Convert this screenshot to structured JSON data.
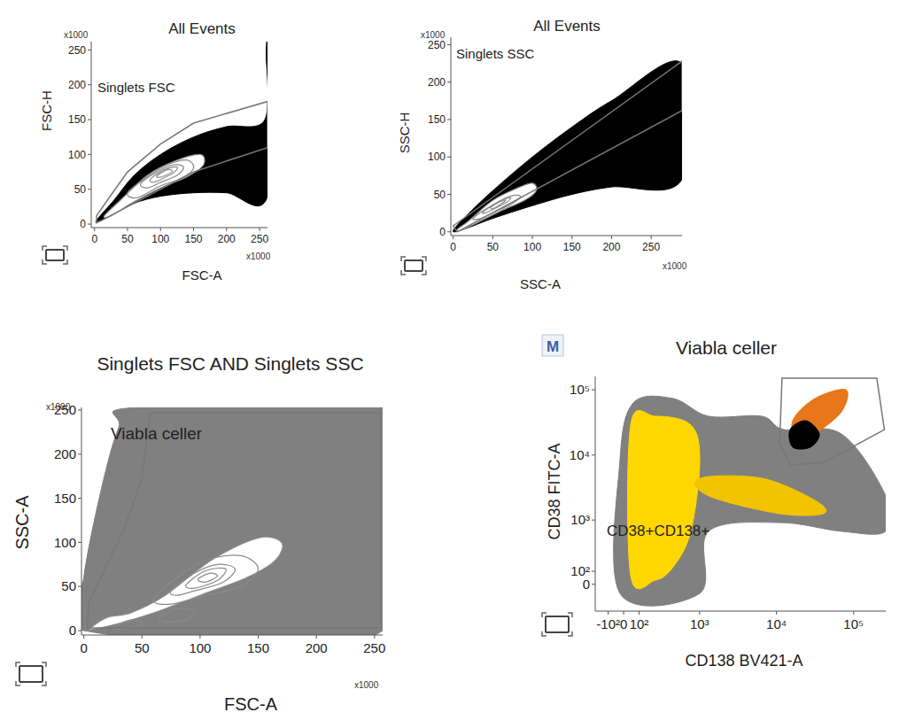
{
  "chart_data": [
    {
      "type": "density",
      "title": "All Events",
      "x_label": "FSC-A",
      "y_label": "FSC-H",
      "scale_label": "x1000",
      "xlim": [
        -5,
        262
      ],
      "ylim": [
        -5,
        262
      ],
      "xticks": [
        0,
        50,
        100,
        150,
        200,
        250
      ],
      "yticks": [
        0,
        50,
        100,
        150,
        200,
        250
      ],
      "clouds": [
        {
          "color": "#000000",
          "x": [
            5,
            30,
            60,
            100,
            150,
            200,
            258,
            260,
            262,
            262,
            200,
            150,
            100,
            60,
            30,
            5
          ],
          "y": [
            8,
            35,
            70,
            100,
            125,
            140,
            150,
            247,
            247,
            40,
            45,
            45,
            40,
            30,
            15,
            3
          ]
        }
      ],
      "contours": [
        {
          "x": [
            15,
            40,
            80,
            120,
            160,
            165,
            140,
            100,
            60,
            25
          ],
          "y": [
            12,
            35,
            70,
            90,
            100,
            85,
            68,
            52,
            32,
            12
          ]
        },
        {
          "x": [
            50,
            80,
            110,
            140,
            150,
            130,
            100,
            65
          ],
          "y": [
            45,
            68,
            85,
            92,
            80,
            65,
            55,
            38
          ]
        },
        {
          "x": [
            70,
            95,
            120,
            135,
            125,
            100,
            80
          ],
          "y": [
            58,
            75,
            85,
            82,
            70,
            60,
            52
          ]
        },
        {
          "x": [
            85,
            105,
            125,
            120,
            100,
            88
          ],
          "y": [
            65,
            78,
            82,
            74,
            64,
            60
          ]
        },
        {
          "x": [
            95,
            110,
            118,
            108,
            97
          ],
          "y": [
            70,
            78,
            76,
            70,
            67
          ]
        }
      ],
      "gates": [
        {
          "label": "Singlets FSC",
          "x": [
            3,
            20,
            50,
            100,
            150,
            262,
            262,
            150,
            100,
            50,
            10,
            3
          ],
          "y": [
            12,
            35,
            75,
            115,
            145,
            176,
            110,
            75,
            50,
            25,
            5,
            2
          ]
        }
      ]
    },
    {
      "type": "density",
      "title": "All Events",
      "x_label": "SSC-A",
      "y_label": "SSC-H",
      "scale_label": "x1000",
      "xlim": [
        -3,
        289
      ],
      "ylim": [
        -5,
        260
      ],
      "xticks": [
        0,
        50,
        100,
        150,
        200,
        250
      ],
      "yticks": [
        0,
        50,
        100,
        150,
        200,
        250
      ],
      "clouds": [
        {
          "color": "#000000",
          "x": [
            2,
            20,
            50,
            100,
            150,
            200,
            289,
            289,
            200,
            150,
            100,
            50,
            20,
            2
          ],
          "y": [
            5,
            25,
            55,
            100,
            140,
            175,
            225,
            70,
            60,
            50,
            35,
            18,
            6,
            0
          ]
        }
      ],
      "contours": [
        {
          "x": [
            5,
            20,
            50,
            80,
            100,
            105,
            90,
            60,
            30,
            10
          ],
          "y": [
            3,
            15,
            42,
            58,
            65,
            55,
            42,
            28,
            12,
            2
          ]
        },
        {
          "x": [
            25,
            45,
            70,
            85,
            75,
            55,
            35
          ],
          "y": [
            18,
            33,
            47,
            48,
            38,
            28,
            18
          ]
        },
        {
          "x": [
            38,
            55,
            72,
            68,
            52,
            40
          ],
          "y": [
            27,
            38,
            46,
            40,
            31,
            25
          ]
        },
        {
          "x": [
            48,
            58,
            66,
            60,
            50
          ],
          "y": [
            33,
            40,
            42,
            37,
            31
          ]
        }
      ],
      "gates": [
        {
          "label": "Singlets SSC",
          "x": [
            0,
            289,
            289,
            5
          ],
          "y": [
            8,
            228,
            162,
            0
          ]
        }
      ]
    },
    {
      "type": "density",
      "title": "Singlets FSC AND Singlets SSC",
      "x_label": "FSC-A",
      "y_label": "SSC-A",
      "scale_label": "x1000",
      "xlim": [
        -2,
        257
      ],
      "ylim": [
        -5,
        253
      ],
      "xticks": [
        0,
        50,
        100,
        150,
        200,
        250
      ],
      "yticks": [
        0,
        50,
        100,
        150,
        200,
        250
      ],
      "clouds": [
        {
          "color": "#808080",
          "x": [
            0,
            0,
            15,
            30,
            45,
            257,
            257
          ],
          "y": [
            0,
            60,
            160,
            230,
            253,
            253,
            0
          ]
        }
      ],
      "contours": [
        {
          "x": [
            5,
            20,
            40,
            70,
            110,
            150,
            170,
            165,
            140,
            100,
            60,
            30,
            10
          ],
          "y": [
            2,
            15,
            20,
            40,
            80,
            105,
            100,
            80,
            60,
            40,
            20,
            8,
            2
          ]
        },
        {
          "x": [
            60,
            80,
            105,
            135,
            150,
            135,
            105,
            75
          ],
          "y": [
            35,
            60,
            80,
            85,
            70,
            50,
            40,
            30
          ]
        },
        {
          "x": [
            75,
            95,
            115,
            130,
            120,
            95,
            80
          ],
          "y": [
            45,
            65,
            75,
            70,
            55,
            45,
            40
          ]
        },
        {
          "x": [
            88,
            105,
            122,
            115,
            95
          ],
          "y": [
            52,
            68,
            70,
            57,
            48
          ]
        },
        {
          "x": [
            98,
            108,
            115,
            105
          ],
          "y": [
            58,
            65,
            62,
            55
          ]
        },
        {
          "x": [
            65,
            80,
            95,
            88,
            70
          ],
          "y": [
            15,
            25,
            22,
            12,
            10
          ]
        },
        {
          "x": [
            25,
            40,
            50,
            35
          ],
          "y": [
            3,
            12,
            8,
            2
          ]
        }
      ],
      "gates": [
        {
          "label": "Viabla celler",
          "x": [
            3,
            4,
            34,
            50,
            57,
            255,
            255
          ],
          "y": [
            3,
            32,
            113,
            173,
            247,
            247,
            3
          ]
        }
      ]
    },
    {
      "type": "density",
      "title": "Viabla celler",
      "badge": "M",
      "x_label": "CD138 BV421-A",
      "y_label": "CD38 FITC-A",
      "log": true,
      "xlim": [
        -200,
        260000
      ],
      "ylim": [
        -230,
        160000
      ],
      "xticks": [
        {
          "value": -100,
          "label": "-10²"
        },
        0,
        {
          "value": 100,
          "label": "10²"
        },
        {
          "value": 1000,
          "label": "10³"
        },
        {
          "value": 10000,
          "label": "10⁴"
        },
        {
          "value": 100000,
          "label": "10⁵"
        }
      ],
      "yticks": [
        0,
        {
          "value": 100,
          "label": "10²"
        },
        {
          "value": 1000,
          "label": "10³"
        },
        {
          "value": 10000,
          "label": "10⁴"
        },
        {
          "value": 100000,
          "label": "10⁵"
        }
      ],
      "clouds": [
        {
          "color": "#808080",
          "x": [
            -23,
            -23,
            61,
            437,
            1315,
            6450,
            12470,
            69500,
            260000,
            260000,
            69500,
            10900,
            1315,
            1004
          ],
          "y": [
            -69,
            8230,
            62600,
            73300,
            39300,
            39300,
            24500,
            21000,
            2360,
            662,
            662,
            913,
            662,
            -69
          ]
        },
        {
          "color": "#ffd700",
          "x": [
            44,
            44,
            230,
            766,
            1004,
            766,
            437,
            230
          ],
          "y": [
            65,
            28800,
            39300,
            28800,
            8230,
            662,
            138,
            31
          ]
        },
        {
          "color": "#f2c400",
          "x": [
            1004,
            6450,
            31400,
            40870,
            10900,
            1315
          ],
          "y": [
            4410,
            4410,
            2020,
            1260,
            1260,
            2360
          ]
        },
        {
          "color": "#e8761a",
          "x": [
            16250,
            31400,
            79100,
            69500,
            31400,
            18500
          ],
          "y": [
            33600,
            73300,
            100000,
            46000,
            21000,
            15400
          ]
        },
        {
          "color": "#000000",
          "x": [
            15000,
            24150,
            35900,
            27500,
            16250
          ],
          "y": [
            24500,
            33600,
            21000,
            13200,
            13200
          ]
        }
      ],
      "gates": [
        {
          "label": "CD38+CD138+",
          "x": [
            11800,
            199000,
            250000,
            40900,
            15000,
            11000
          ],
          "y": [
            150000,
            150000,
            24500,
            7700,
            7000,
            15400
          ]
        }
      ]
    }
  ]
}
